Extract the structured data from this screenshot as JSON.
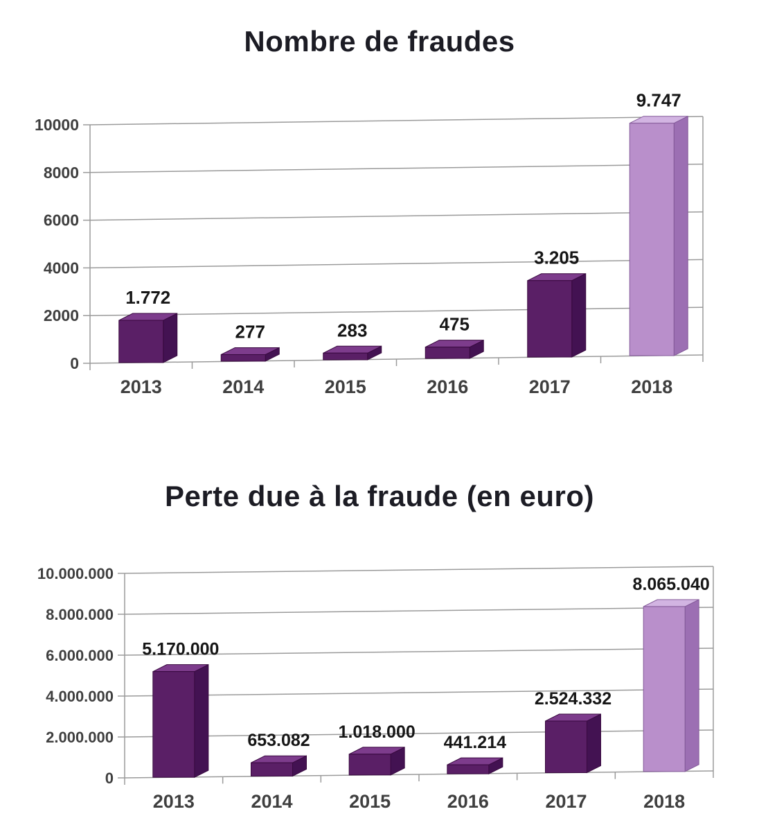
{
  "colors": {
    "background": "#ffffff",
    "grid": "#9a9a9a",
    "axis_text": "#3f3f3f",
    "value_text": "#161616",
    "title_text": "#1c1c24",
    "bar_front": "#5a1f66",
    "bar_side": "#431252",
    "bar_top": "#7d3c8c",
    "bar_stroke": "#38093f",
    "highlight_front": "#b98fcb",
    "highlight_side": "#9c6fb3",
    "highlight_top": "#d2b4e2",
    "highlight_stroke": "#835a99"
  },
  "chart_data": [
    {
      "type": "bar",
      "title": "Nombre de fraudes",
      "categories": [
        "2013",
        "2014",
        "2015",
        "2016",
        "2017",
        "2018"
      ],
      "values": [
        1772,
        277,
        283,
        475,
        3205,
        9747
      ],
      "value_labels": [
        "1.772",
        "277",
        "283",
        "475",
        "3.205",
        "9.747"
      ],
      "highlight_index": 5,
      "ylim": [
        0,
        10000
      ],
      "yticks": [
        0,
        2000,
        4000,
        6000,
        8000,
        10000
      ],
      "ytick_labels": [
        "0",
        "2000",
        "4000",
        "6000",
        "8000",
        "10000"
      ],
      "xlabel": "",
      "ylabel": "",
      "grid": true,
      "legend": false,
      "style": "3d-column"
    },
    {
      "type": "bar",
      "title": "Perte due à la fraude (en euro)",
      "categories": [
        "2013",
        "2014",
        "2015",
        "2016",
        "2017",
        "2018"
      ],
      "values": [
        5170000,
        653082,
        1018000,
        441214,
        2524332,
        8065040
      ],
      "value_labels": [
        "5.170.000",
        "653.082",
        "1.018.000",
        "441.214",
        "2.524.332",
        "8.065.040"
      ],
      "highlight_index": 5,
      "ylim": [
        0,
        10000000
      ],
      "yticks": [
        0,
        2000000,
        4000000,
        6000000,
        8000000,
        10000000
      ],
      "ytick_labels": [
        "0",
        "2.000.000",
        "4.000.000",
        "6.000.000",
        "8.000.000",
        "10.000.000"
      ],
      "xlabel": "",
      "ylabel": "",
      "grid": true,
      "legend": false,
      "style": "3d-column"
    }
  ]
}
